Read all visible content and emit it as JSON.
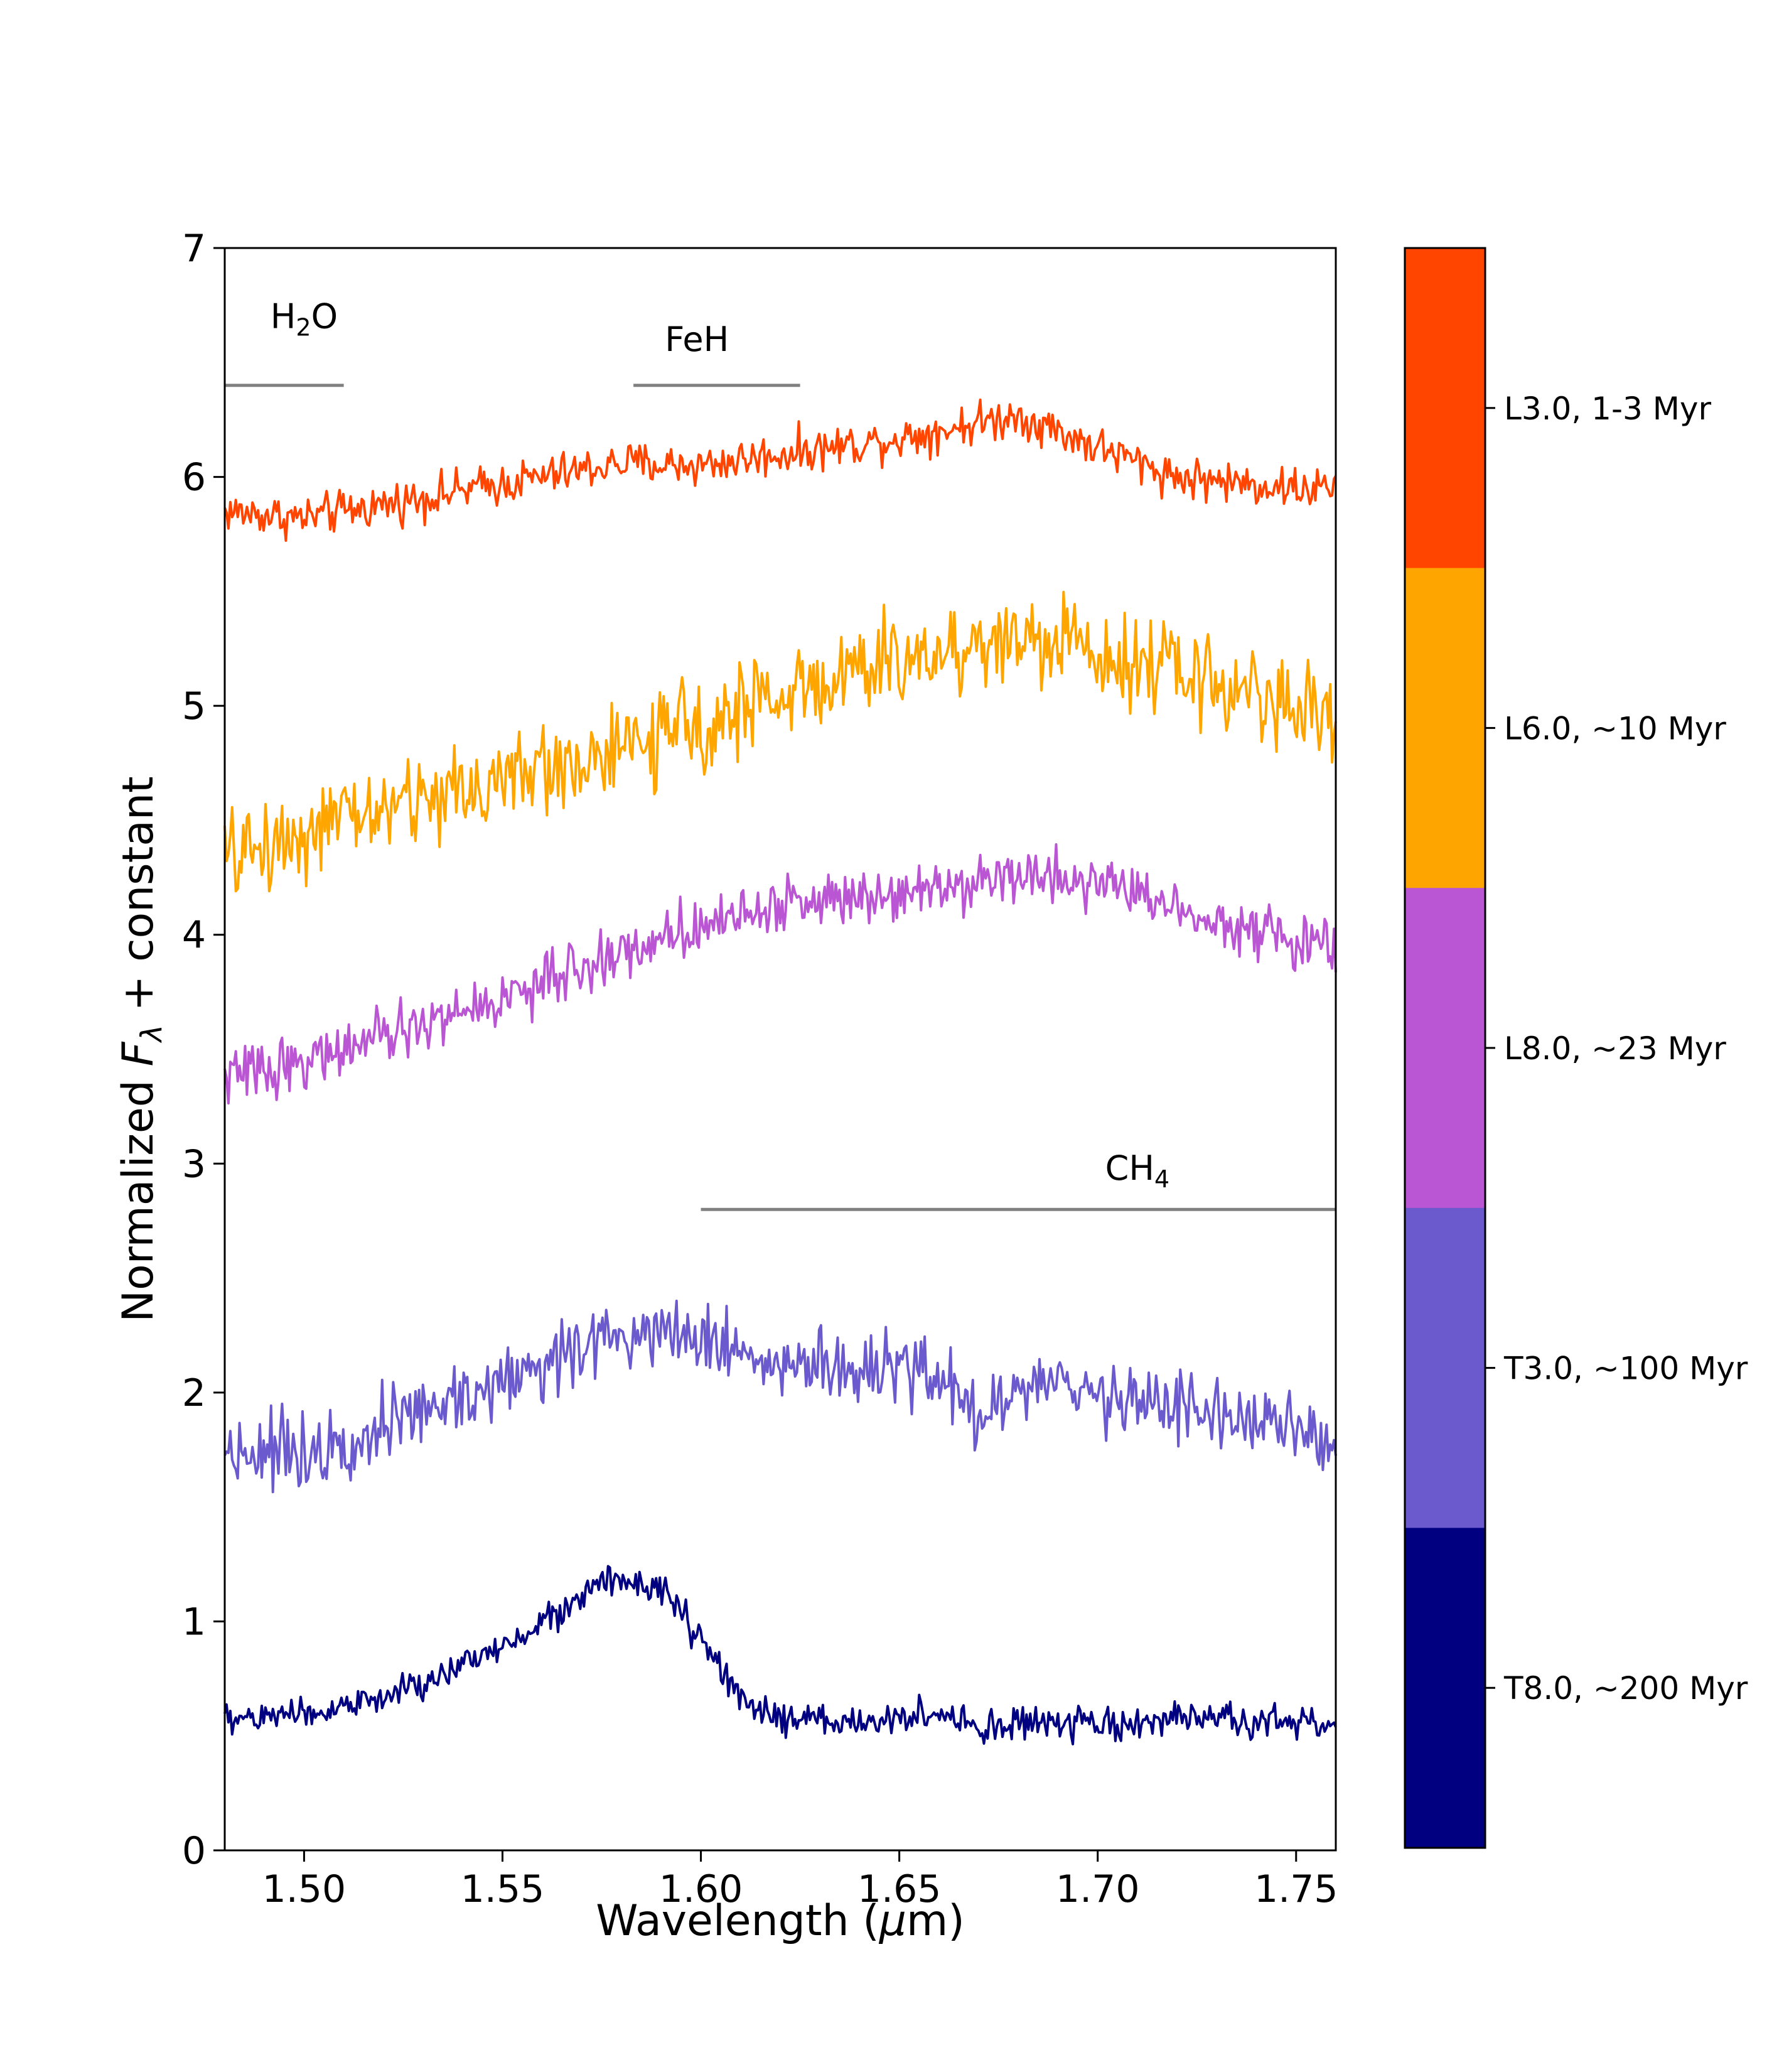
{
  "chart_data": {
    "type": "line",
    "xlabel": {
      "pre": "Wavelength (",
      "sym": "μ",
      "post": "m)"
    },
    "ylabel": {
      "pre": "Normalized ",
      "sym": "F",
      "sub": "λ",
      "post": " + constant"
    },
    "xlim": [
      1.48,
      1.76
    ],
    "ylim": [
      0,
      7
    ],
    "xticks": [
      1.5,
      1.55,
      1.6,
      1.65,
      1.7,
      1.75
    ],
    "xtick_labels": [
      "1.50",
      "1.55",
      "1.60",
      "1.65",
      "1.70",
      "1.75"
    ],
    "yticks": [
      0,
      1,
      2,
      3,
      4,
      5,
      6,
      7
    ],
    "ytick_labels": [
      "0",
      "1",
      "2",
      "3",
      "4",
      "5",
      "6",
      "7"
    ],
    "series": [
      {
        "name": "L3.0, 1-3 Myr",
        "color": "#ff4500",
        "noise": 0.045,
        "x": [
          1.48,
          1.5,
          1.52,
          1.55,
          1.58,
          1.6,
          1.62,
          1.65,
          1.68,
          1.7,
          1.72,
          1.75,
          1.76
        ],
        "y": [
          5.85,
          5.82,
          5.88,
          5.97,
          6.06,
          6.05,
          6.1,
          6.17,
          6.27,
          6.13,
          6.0,
          5.95,
          5.95
        ]
      },
      {
        "name": "L6.0, ~10 Myr",
        "color": "#ffa500",
        "noise": 0.1,
        "x": [
          1.48,
          1.5,
          1.52,
          1.55,
          1.58,
          1.6,
          1.62,
          1.65,
          1.68,
          1.7,
          1.72,
          1.75,
          1.76
        ],
        "y": [
          4.33,
          4.45,
          4.55,
          4.68,
          4.8,
          4.92,
          5.05,
          5.2,
          5.3,
          5.25,
          5.15,
          5.0,
          4.95
        ]
      },
      {
        "name": "L8.0, ~23 Myr",
        "color": "#ba55d3",
        "noise": 0.06,
        "x": [
          1.48,
          1.5,
          1.52,
          1.55,
          1.58,
          1.6,
          1.62,
          1.65,
          1.68,
          1.7,
          1.72,
          1.75,
          1.76
        ],
        "y": [
          3.38,
          3.45,
          3.55,
          3.72,
          3.92,
          4.05,
          4.13,
          4.2,
          4.26,
          4.24,
          4.12,
          3.97,
          3.93
        ]
      },
      {
        "name": "T3.0, ~100 Myr",
        "color": "#6a5acd",
        "noise": 0.08,
        "x": [
          1.48,
          1.5,
          1.52,
          1.55,
          1.57,
          1.59,
          1.6,
          1.62,
          1.65,
          1.665,
          1.67,
          1.68,
          1.7,
          1.72,
          1.75,
          1.76
        ],
        "y": [
          1.75,
          1.75,
          1.85,
          2.05,
          2.2,
          2.3,
          2.25,
          2.12,
          2.08,
          2.05,
          1.87,
          2.02,
          2.0,
          1.95,
          1.82,
          1.8
        ]
      },
      {
        "name": "T8.0, ~200 Myr",
        "color": "#000080",
        "noise": 0.035,
        "x": [
          1.48,
          1.5,
          1.52,
          1.54,
          1.56,
          1.575,
          1.59,
          1.6,
          1.61,
          1.62,
          1.64,
          1.66,
          1.67,
          1.68,
          1.7,
          1.72,
          1.75,
          1.76
        ],
        "y": [
          0.57,
          0.6,
          0.66,
          0.8,
          1.0,
          1.17,
          1.15,
          0.92,
          0.65,
          0.57,
          0.56,
          0.6,
          0.52,
          0.56,
          0.54,
          0.57,
          0.56,
          0.55
        ]
      }
    ],
    "annotations": [
      {
        "id": "h2o",
        "label": {
          "pre": "H",
          "sub": "2",
          "post": "O"
        },
        "x0": 1.48,
        "x1": 1.51,
        "y": 6.4,
        "label_x": 1.5,
        "label_y": 6.65
      },
      {
        "id": "feh",
        "label": {
          "pre": "FeH",
          "sub": "",
          "post": ""
        },
        "x0": 1.583,
        "x1": 1.625,
        "y": 6.4,
        "label_x": 1.599,
        "label_y": 6.55
      },
      {
        "id": "ch4",
        "label": {
          "pre": "CH",
          "sub": "4",
          "post": ""
        },
        "x0": 1.6,
        "x1": 1.76,
        "y": 2.8,
        "label_x": 1.71,
        "label_y": 2.93
      }
    ],
    "annotation_color": "#808080",
    "colorbar": {
      "colors": [
        "#ff4500",
        "#ffa500",
        "#ba55d3",
        "#6a5acd",
        "#000080"
      ],
      "labels": [
        "L3.0, 1-3 Myr",
        "L6.0, ~10 Myr",
        "L8.0, ~23 Myr",
        "T3.0, ~100 Myr",
        "T8.0, ~200 Myr"
      ]
    },
    "grid": false,
    "legend": "colorbar-right"
  }
}
